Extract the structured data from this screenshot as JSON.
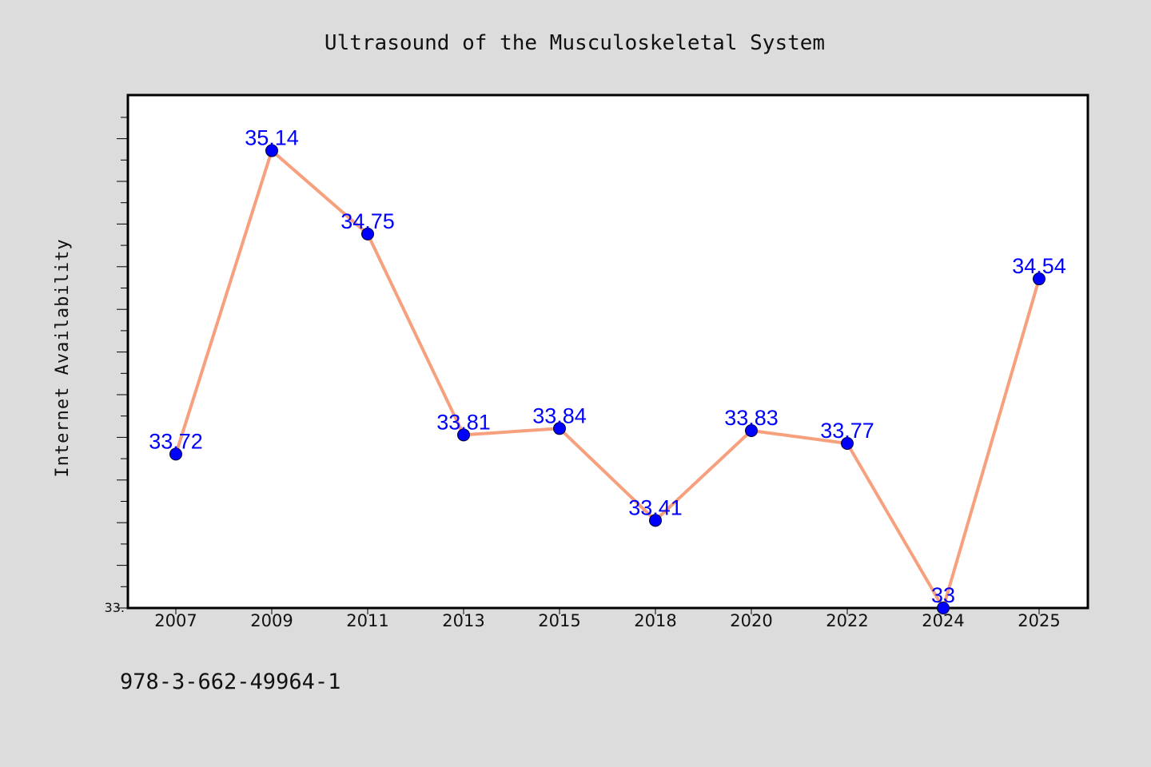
{
  "chart_data": {
    "type": "line",
    "title": "Ultrasound of the Musculoskeletal System",
    "xlabel": "",
    "ylabel": "Internet Availability",
    "categories": [
      "2007",
      "2009",
      "2011",
      "2013",
      "2015",
      "2018",
      "2020",
      "2022",
      "2024",
      "2025"
    ],
    "series": [
      {
        "values": [
          33.72,
          35.14,
          34.75,
          33.81,
          33.84,
          33.41,
          33.83,
          33.77,
          33,
          34.54
        ],
        "labels": [
          "33.72",
          "35.14",
          "34.75",
          "33.81",
          "33.84",
          "33.41",
          "33.83",
          "33.77",
          "33",
          "34.54"
        ],
        "line_color": "#f7a07e",
        "marker_color": "#0000ff"
      }
    ],
    "ylim": [
      33,
      35.4
    ],
    "ytick_labels": [
      {
        "value": 33,
        "label": "33."
      }
    ],
    "grid": false,
    "legend": "none"
  },
  "footer": {
    "isbn": "978-3-662-49964-1"
  },
  "colors": {
    "background": "#dcdcdc",
    "plot_background": "#ffffff",
    "line": "#f7a07e",
    "marker": "#0000ff",
    "label": "#0000ff"
  }
}
